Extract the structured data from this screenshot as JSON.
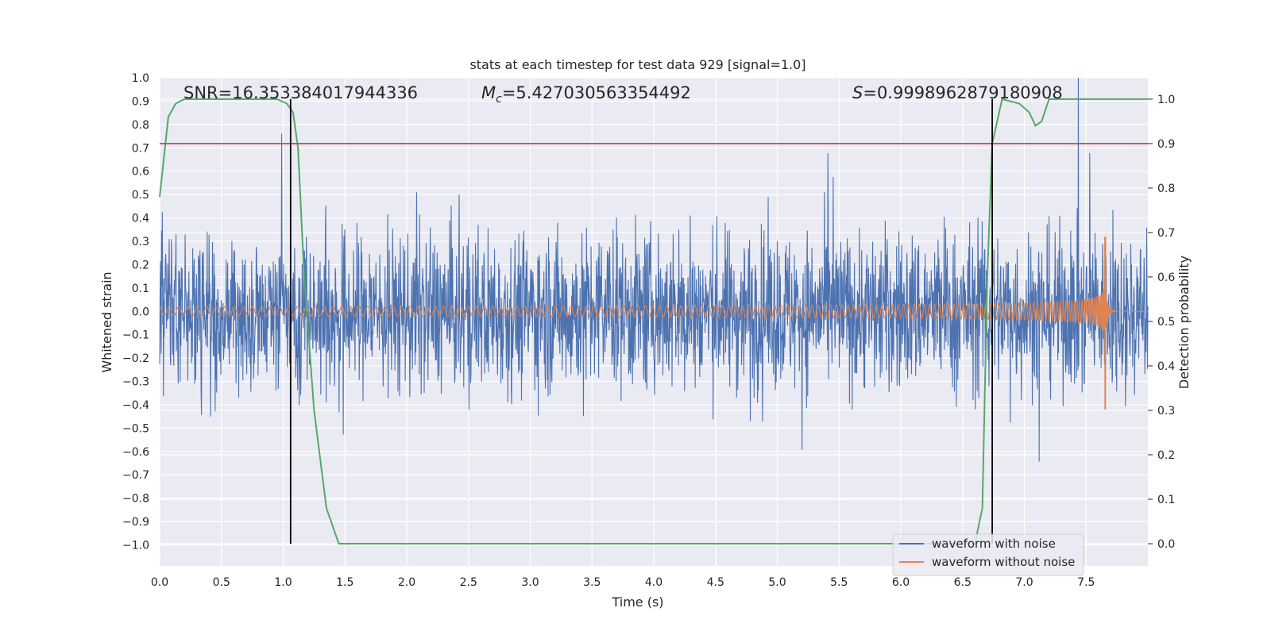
{
  "chart_data": {
    "type": "line",
    "title": "stats at each timestep for test data 929 [signal=1.0]",
    "xlabel": "Time (s)",
    "ylabel_left": "Whitened strain",
    "ylabel_right": "Detection probability",
    "xlim": [
      0.0,
      8.0
    ],
    "ylim_left": [
      -1.09,
      1.0
    ],
    "ylim_right": [
      -0.05,
      1.048
    ],
    "x_ticks": [
      "0.0",
      "0.5",
      "1.0",
      "1.5",
      "2.0",
      "2.5",
      "3.0",
      "3.5",
      "4.0",
      "4.5",
      "5.0",
      "5.5",
      "6.0",
      "6.5",
      "7.0",
      "7.5"
    ],
    "y_left_ticks": [
      "1.0",
      "0.9",
      "0.8",
      "0.7",
      "0.6",
      "0.5",
      "0.4",
      "0.3",
      "0.2",
      "0.1",
      "0.0",
      "−0.1",
      "−0.2",
      "−0.3",
      "−0.4",
      "−0.5",
      "−0.6",
      "−0.7",
      "−0.8",
      "−0.9",
      "−1.0"
    ],
    "y_right_ticks": [
      "1.0",
      "0.9",
      "0.8",
      "0.7",
      "0.6",
      "0.5",
      "0.4",
      "0.3",
      "0.2",
      "0.1",
      "0.0"
    ],
    "annotations": {
      "snr": "SNR=16.353384017944336",
      "mc_symbol": "M",
      "mc_sub": "c",
      "mc_value": "=5.427030563354492",
      "s_symbol": "S",
      "s_value": "=0.9998962879180908"
    },
    "threshold": {
      "value": 0.9,
      "axis": "right",
      "color": "#c44e52"
    },
    "vertical_markers": [
      1.06,
      6.74
    ],
    "series": [
      {
        "name": "waveform with noise",
        "color": "#4c72b0",
        "axis": "left",
        "noise_std": 0.17,
        "max_abs": 1.0,
        "t_end": 8.0
      },
      {
        "name": "waveform without noise",
        "color": "#dd8452",
        "axis": "left",
        "chirp_t_start": 0.0,
        "chirp_t_merge": 7.66,
        "chirp_t_end": 8.0,
        "amp_start": 0.02,
        "amp_peak": 0.32,
        "amp_min": -0.42,
        "cycles": 160
      },
      {
        "name": "detection probability",
        "color": "#55a868",
        "axis": "right",
        "x": [
          0.0,
          0.07,
          0.13,
          0.2,
          0.4,
          0.7,
          0.95,
          1.03,
          1.08,
          1.12,
          1.17,
          1.25,
          1.35,
          1.45,
          1.55,
          6.6,
          6.66,
          6.7,
          6.74,
          6.82,
          6.96,
          7.04,
          7.09,
          7.14,
          7.2,
          8.0
        ],
        "y": [
          0.78,
          0.96,
          0.99,
          1.0,
          1.0,
          1.0,
          1.0,
          0.99,
          0.97,
          0.89,
          0.6,
          0.3,
          0.08,
          0.0,
          0.0,
          0.0,
          0.08,
          0.6,
          0.9,
          1.0,
          0.99,
          0.97,
          0.94,
          0.95,
          1.0,
          1.0
        ]
      }
    ],
    "legend": {
      "position": "lower-right",
      "entries": [
        "waveform with noise",
        "waveform without noise"
      ]
    }
  }
}
